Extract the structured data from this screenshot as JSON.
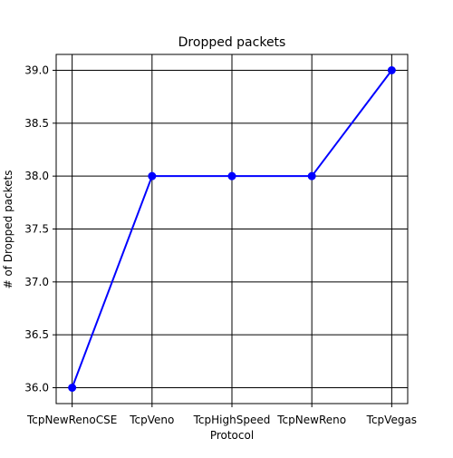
{
  "chart_data": {
    "type": "line",
    "title": "Dropped packets",
    "xlabel": "Protocol",
    "ylabel": "# of Dropped packets",
    "categories": [
      "TcpNewRenoCSE",
      "TcpVeno",
      "TcpHighSpeed",
      "TcpNewReno",
      "TcpVegas"
    ],
    "series": [
      {
        "values": [
          36.0,
          38.0,
          38.0,
          38.0,
          39.0
        ]
      }
    ],
    "ylim": [
      35.85,
      39.15
    ],
    "yticks": [
      36.0,
      36.5,
      37.0,
      37.5,
      38.0,
      38.5,
      39.0
    ],
    "ytick_labels": [
      "36.0",
      "36.5",
      "37.0",
      "37.5",
      "38.0",
      "38.5",
      "39.0"
    ],
    "grid": true,
    "colors": {
      "line": "#0000ff",
      "marker": "#0000ff",
      "grid": "#000000"
    }
  }
}
